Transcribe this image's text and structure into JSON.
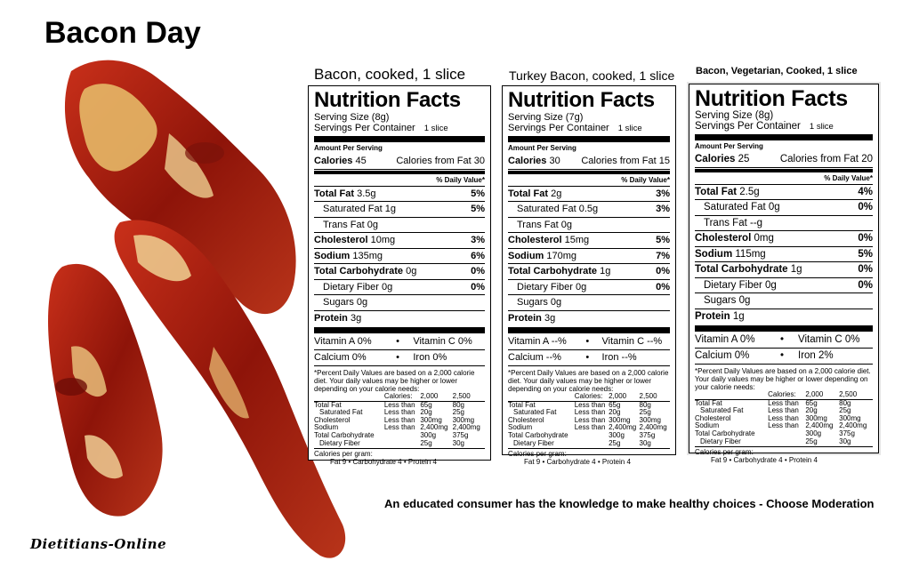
{
  "page": {
    "title": "Bacon Day",
    "tagline": "An educated consumer has the knowledge to make healthy choices - Choose Moderation",
    "credit": "Dietitians-Online"
  },
  "common": {
    "nf_title": "Nutrition Facts",
    "amount_per_serving": "Amount Per Serving",
    "daily_value_header": "% Daily Value*",
    "bullet": "•",
    "footnote": "*Percent Daily Values are based on a 2,000 calorie diet. Your daily values may be higher or lower depending on your calorie needs:",
    "footnote_table": {
      "header": [
        "",
        "Calories:",
        "2,000",
        "2,500"
      ],
      "rows": [
        [
          "Total Fat",
          "Less than",
          "65g",
          "80g"
        ],
        [
          "Saturated Fat",
          "Less than",
          "20g",
          "25g"
        ],
        [
          "Cholesterol",
          "Less than",
          "300mg",
          "300mg"
        ],
        [
          "Sodium",
          "Less than",
          "2,400mg",
          "2,400mg"
        ],
        [
          "Total Carbohydrate",
          "",
          "300g",
          "375g"
        ],
        [
          "Dietary Fiber",
          "",
          "25g",
          "30g"
        ]
      ]
    },
    "calories_per_gram": "Calories per gram:",
    "calories_per_gram_values": "Fat 9  •  Carbohydrate 4  •  Protein 4"
  },
  "labels": [
    {
      "caption": "Bacon, cooked, 1 slice",
      "serving_size": "Serving Size (8g)",
      "servings_per_container": "Servings Per Container",
      "servings_value": "1 slice",
      "calories_label": "Calories",
      "calories": "45",
      "calories_from_fat": "Calories from Fat 30",
      "total_fat_label": "Total Fat",
      "total_fat": "3.5g",
      "total_fat_dv": "5%",
      "sat_fat_label": "Saturated Fat",
      "sat_fat": "1g",
      "sat_fat_dv": "5%",
      "trans_fat_label": "Trans Fat",
      "trans_fat": "0g",
      "cholesterol_label": "Cholesterol",
      "cholesterol": "10mg",
      "cholesterol_dv": "3%",
      "sodium_label": "Sodium",
      "sodium": "135mg",
      "sodium_dv": "6%",
      "carb_label": "Total Carbohydrate",
      "carb": "0g",
      "carb_dv": "0%",
      "fiber_label": "Dietary Fiber",
      "fiber": "0g",
      "fiber_dv": "0%",
      "sugars_label": "Sugars",
      "sugars": "0g",
      "protein_label": "Protein",
      "protein": "3g",
      "vitamin_a": "Vitamin A 0%",
      "vitamin_c": "Vitamin C 0%",
      "calcium": "Calcium 0%",
      "iron": "Iron 0%"
    },
    {
      "caption": "Turkey Bacon, cooked, 1 slice",
      "serving_size": "Serving Size (7g)",
      "servings_per_container": "Servings Per Container",
      "servings_value": "1 slice",
      "calories_label": "Calories",
      "calories": "30",
      "calories_from_fat": "Calories from Fat 15",
      "total_fat_label": "Total Fat",
      "total_fat": "2g",
      "total_fat_dv": "3%",
      "sat_fat_label": "Saturated Fat",
      "sat_fat": "0.5g",
      "sat_fat_dv": "3%",
      "trans_fat_label": "Trans Fat",
      "trans_fat": "0g",
      "cholesterol_label": "Cholesterol",
      "cholesterol": "15mg",
      "cholesterol_dv": "5%",
      "sodium_label": "Sodium",
      "sodium": "170mg",
      "sodium_dv": "7%",
      "carb_label": "Total Carbohydrate",
      "carb": "1g",
      "carb_dv": "0%",
      "fiber_label": "Dietary Fiber",
      "fiber": "0g",
      "fiber_dv": "0%",
      "sugars_label": "Sugars",
      "sugars": "0g",
      "protein_label": "Protein",
      "protein": "3g",
      "vitamin_a": "Vitamin A --%",
      "vitamin_c": "Vitamin C --%",
      "calcium": "Calcium --%",
      "iron": "Iron --%"
    },
    {
      "caption": "Bacon, Vegetarian, Cooked, 1 slice",
      "serving_size": "Serving Size (8g)",
      "servings_per_container": "Servings Per Container",
      "servings_value": "1 slice",
      "calories_label": "Calories",
      "calories": "25",
      "calories_from_fat": "Calories from Fat 20",
      "total_fat_label": "Total Fat",
      "total_fat": "2.5g",
      "total_fat_dv": "4%",
      "sat_fat_label": "Saturated Fat",
      "sat_fat": "0g",
      "sat_fat_dv": "0%",
      "trans_fat_label": "Trans Fat",
      "trans_fat": "--g",
      "cholesterol_label": "Cholesterol",
      "cholesterol": "0mg",
      "cholesterol_dv": "0%",
      "sodium_label": "Sodium",
      "sodium": "115mg",
      "sodium_dv": "5%",
      "carb_label": "Total Carbohydrate",
      "carb": "1g",
      "carb_dv": "0%",
      "fiber_label": "Dietary Fiber",
      "fiber": "0g",
      "fiber_dv": "0%",
      "sugars_label": "Sugars",
      "sugars": "0g",
      "protein_label": "Protein",
      "protein": "1g",
      "vitamin_a": "Vitamin A 0%",
      "vitamin_c": "Vitamin C 0%",
      "calcium": "Calcium 0%",
      "iron": "Iron 2%"
    }
  ],
  "colors": {
    "bacon_dark": "#7a0f08",
    "bacon_red": "#b3200f",
    "bacon_fat": "#e8c07a"
  }
}
